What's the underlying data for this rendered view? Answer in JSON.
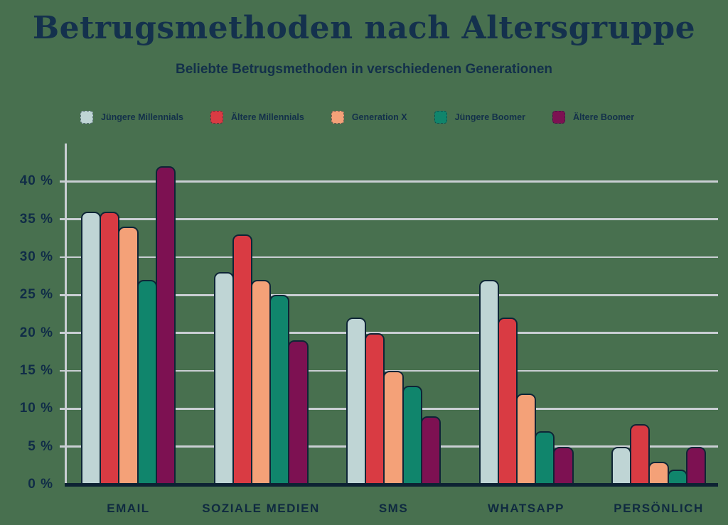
{
  "header": {
    "title": "Betrugsmethoden nach Altersgruppe",
    "subtitle": "Beliebte Betrugsmethoden in verschiedenen Generationen"
  },
  "colors": {
    "background": "#48704f",
    "title_text": "#14314d",
    "label_text": "#0f2a40",
    "gridline": "#c9ced3",
    "axis_line": "#0d2233",
    "bar_outline": "#0e2536"
  },
  "chart_data": {
    "type": "bar",
    "title": "Betrugsmethoden nach Altersgruppe",
    "subtitle": "Beliebte Betrugsmethoden in verschiedenen Generationen",
    "categories": [
      "EMAIL",
      "SOZIALE MEDIEN",
      "SMS",
      "WHATSAPP",
      "PERSÖNLICH"
    ],
    "series": [
      {
        "name": "Jüngere Millennials",
        "color": "#bfd5d5",
        "values": [
          36,
          28,
          22,
          27,
          5
        ]
      },
      {
        "name": "Ältere Millennials",
        "color": "#d93b43",
        "values": [
          36,
          33,
          20,
          22,
          8
        ]
      },
      {
        "name": "Generation X",
        "color": "#f4a178",
        "values": [
          34,
          27,
          15,
          12,
          3
        ]
      },
      {
        "name": "Jüngere Boomer",
        "color": "#10856c",
        "values": [
          27,
          25,
          13,
          7,
          2
        ]
      },
      {
        "name": "Ältere Boomer",
        "color": "#7d1152",
        "values": [
          42,
          19,
          9,
          5,
          5
        ]
      }
    ],
    "unit": "%",
    "y_ticks": [
      {
        "value": 0,
        "label": "0 %"
      },
      {
        "value": 5,
        "label": "5 %"
      },
      {
        "value": 10,
        "label": "10 %"
      },
      {
        "value": 15,
        "label": "15 %"
      },
      {
        "value": 20,
        "label": "20 %"
      },
      {
        "value": 25,
        "label": "25 %"
      },
      {
        "value": 30,
        "label": "30 %"
      },
      {
        "value": 35,
        "label": "35 %"
      },
      {
        "value": 40,
        "label": "40 %"
      }
    ],
    "ylim": [
      0,
      45
    ],
    "grid": "horizontal",
    "legend_position": "top"
  }
}
